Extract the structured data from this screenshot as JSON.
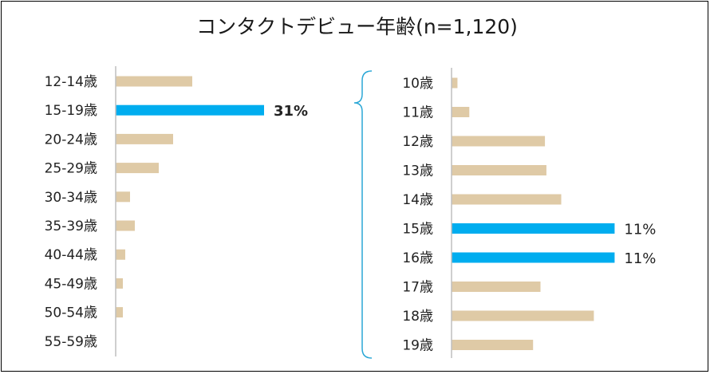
{
  "title": "コンタクトデビュー年齢(n=1,120)",
  "colors": {
    "normal": "#dfcaa6",
    "highlight": "#00adef",
    "axis": "#bfbfbf",
    "brace": "#2aa7d6"
  },
  "chart_data": [
    {
      "type": "bar",
      "orientation": "horizontal",
      "categories": [
        "12-14歳",
        "15-19歳",
        "20-24歳",
        "25-29歳",
        "30-34歳",
        "35-39歳",
        "40-44歳",
        "45-49歳",
        "50-54歳",
        "55-59歳"
      ],
      "values": [
        16,
        31,
        12,
        9,
        3,
        4,
        2,
        1.5,
        1.5,
        0
      ],
      "highlight": [
        false,
        true,
        false,
        false,
        false,
        false,
        false,
        false,
        false,
        false
      ],
      "data_labels": [
        "",
        "31%",
        "",
        "",
        "",
        "",
        "",
        "",
        "",
        ""
      ],
      "xlim": [
        0,
        35
      ],
      "unit": "%"
    },
    {
      "type": "bar",
      "orientation": "horizontal",
      "categories": [
        "10歳",
        "11歳",
        "12歳",
        "13歳",
        "14歳",
        "15歳",
        "16歳",
        "17歳",
        "18歳",
        "19歳"
      ],
      "values": [
        0.4,
        1.2,
        6.3,
        6.4,
        7.4,
        11,
        11,
        6.0,
        9.6,
        5.5
      ],
      "highlight": [
        false,
        false,
        false,
        false,
        false,
        true,
        true,
        false,
        false,
        false
      ],
      "data_labels": [
        "",
        "",
        "",
        "",
        "",
        "11%",
        "11%",
        "",
        "",
        ""
      ],
      "xlim": [
        0,
        12
      ],
      "unit": "%"
    }
  ]
}
